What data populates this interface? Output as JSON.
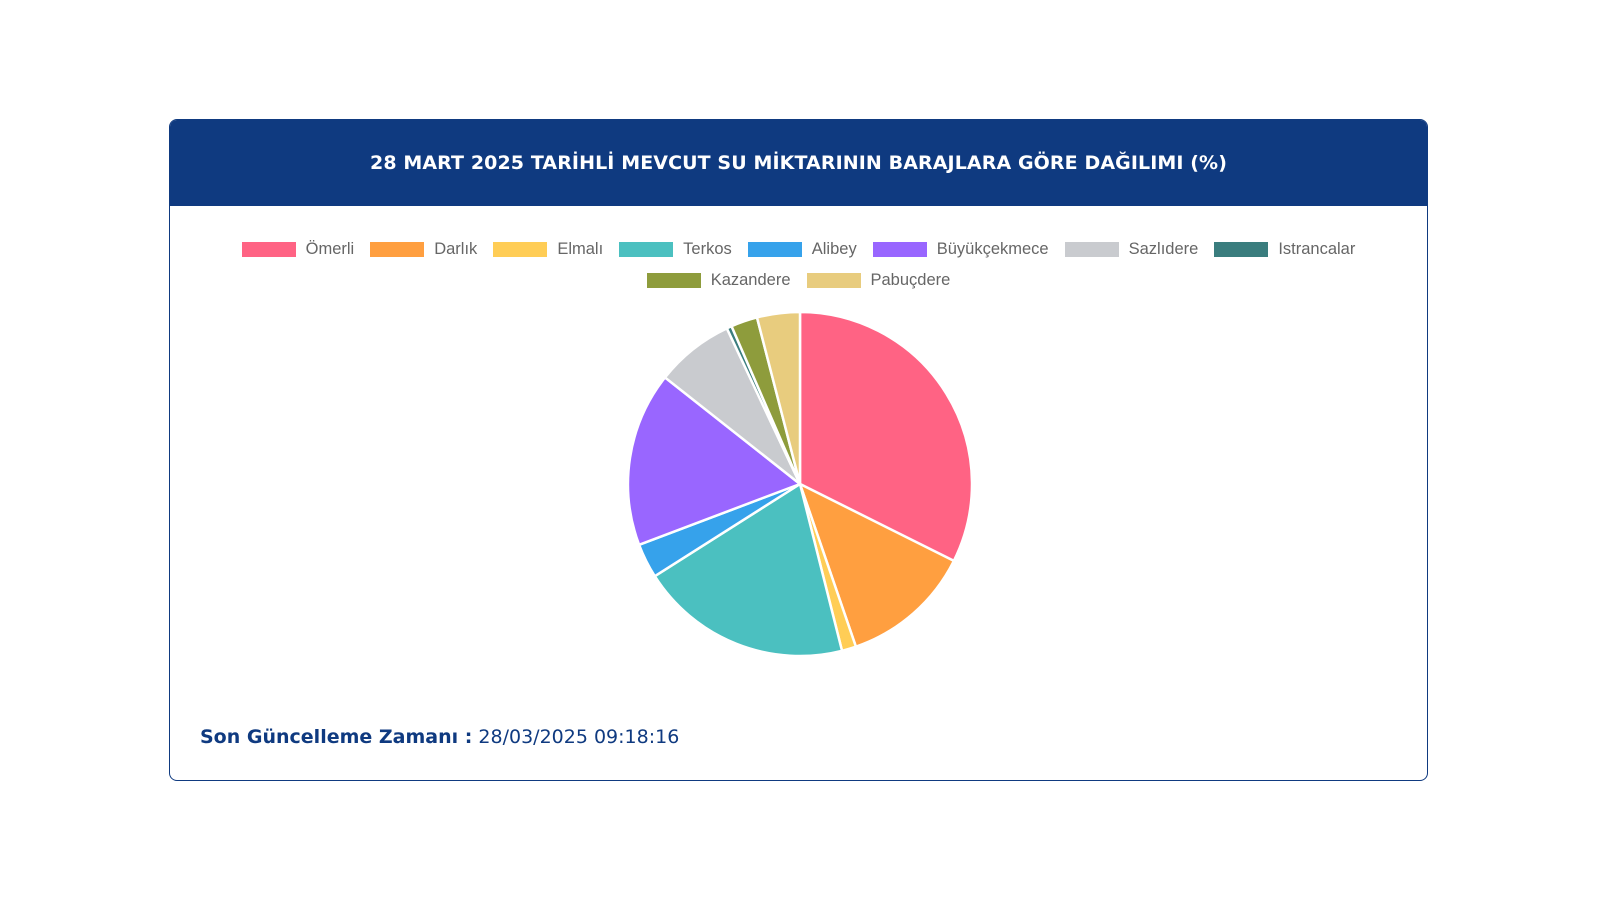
{
  "header": {
    "title": "28 MART 2025 TARİHLİ MEVCUT SU MİKTARININ BARAJLARA GÖRE DAĞILIMI (%)"
  },
  "footer": {
    "label": "Son Güncelleme Zamanı :",
    "value": "28/03/2025 09:18:16"
  },
  "chart_data": {
    "type": "pie",
    "title": "28 MART 2025 TARİHLİ MEVCUT SU MİKTARININ BARAJLARA GÖRE DAĞILIMI (%)",
    "legend_position": "top",
    "start_angle": "top, clockwise",
    "categories": [
      "Ömerli",
      "Darlık",
      "Elmalı",
      "Terkos",
      "Alibey",
      "Büyükçekmece",
      "Sazlıdere",
      "Istrancalar",
      "Kazandere",
      "Pabuçdere"
    ],
    "values": [
      33.8,
      12.9,
      1.4,
      20.8,
      3.4,
      17.1,
      7.7,
      0.5,
      2.6,
      4.2
    ],
    "colors": [
      "#ff6384",
      "#ff9f40",
      "#ffcd56",
      "#4bc0c0",
      "#36a2eb",
      "#9966ff",
      "#c9cbcf",
      "#3a7d7e",
      "#8e9c3c",
      "#e8cc7e"
    ]
  }
}
